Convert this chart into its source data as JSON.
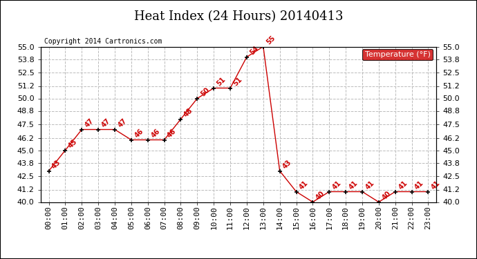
{
  "title": "Heat Index (24 Hours) 20140413",
  "copyright": "Copyright 2014 Cartronics.com",
  "legend_label": "Temperature (°F)",
  "x_labels": [
    "00:00",
    "01:00",
    "02:00",
    "03:00",
    "04:00",
    "05:00",
    "06:00",
    "07:00",
    "08:00",
    "09:00",
    "10:00",
    "11:00",
    "12:00",
    "13:00",
    "14:00",
    "15:00",
    "16:00",
    "17:00",
    "18:00",
    "19:00",
    "20:00",
    "21:00",
    "22:00",
    "23:00"
  ],
  "y_values": [
    43,
    45,
    47,
    47,
    47,
    46,
    46,
    46,
    48,
    50,
    51,
    51,
    54,
    55,
    43,
    41,
    40,
    41,
    41,
    41,
    40,
    41,
    41,
    41
  ],
  "ylim": [
    40.0,
    55.0
  ],
  "yticks": [
    40.0,
    41.2,
    42.5,
    43.8,
    45.0,
    46.2,
    47.5,
    48.8,
    50.0,
    51.2,
    52.5,
    53.8,
    55.0
  ],
  "line_color": "#cc0000",
  "marker_color": "#000000",
  "bg_color": "#ffffff",
  "grid_color": "#bbbbbb",
  "title_color": "#000000",
  "annotation_color": "#cc0000",
  "legend_bg": "#cc0000",
  "legend_text_color": "#ffffff",
  "border_color": "#000000",
  "title_fontsize": 13,
  "tick_fontsize": 8,
  "annot_fontsize": 7,
  "copyright_fontsize": 7
}
